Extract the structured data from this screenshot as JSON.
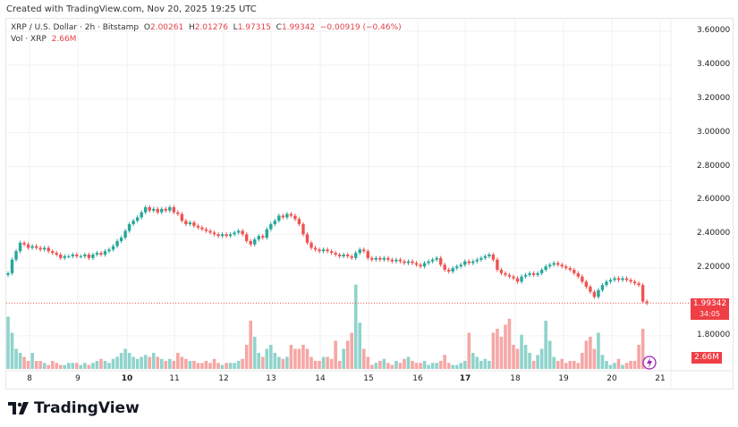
{
  "caption": "Created with TradingView.com, Nov 20, 2025 19:25 UTC",
  "legend": {
    "symbol": "XRP / U.S. Dollar · 2h · Bitstamp",
    "open_label": "O",
    "open": "2.00261",
    "high_label": "H",
    "high": "2.01276",
    "low_label": "L",
    "low": "1.97315",
    "close_label": "C",
    "close": "1.99342",
    "change": "−0.00919 (−0.46%)",
    "vol_label": "Vol · XRP",
    "vol": "2.66M"
  },
  "price_label": {
    "value": "1.99342",
    "countdown": "34:05"
  },
  "volume_label": "2.66M",
  "brand": "TradingView",
  "colors": {
    "up": "#26a69a",
    "down": "#ef5350",
    "up_vol": "#8fd3cc",
    "down_vol": "#f5a7a5",
    "label": "#ef3e45",
    "grid": "#f2f2f2"
  },
  "chart_data": {
    "type": "candlestick",
    "interval": "2h",
    "y_ticks": [
      "3.60000",
      "3.40000",
      "3.20000",
      "3.00000",
      "2.80000",
      "2.60000",
      "2.40000",
      "2.20000",
      "1.80000"
    ],
    "ylim": [
      1.8,
      3.6
    ],
    "x_ticks": [
      "8",
      "9",
      "10",
      "11",
      "12",
      "13",
      "14",
      "15",
      "16",
      "17",
      "18",
      "19",
      "20",
      "21"
    ],
    "bold_x_ticks": [
      "10",
      "17"
    ],
    "grid": true,
    "closes": [
      2.17,
      2.25,
      2.3,
      2.35,
      2.34,
      2.32,
      2.33,
      2.32,
      2.31,
      2.32,
      2.3,
      2.29,
      2.28,
      2.26,
      2.27,
      2.27,
      2.28,
      2.27,
      2.27,
      2.28,
      2.26,
      2.28,
      2.29,
      2.28,
      2.3,
      2.31,
      2.33,
      2.36,
      2.38,
      2.42,
      2.46,
      2.48,
      2.5,
      2.53,
      2.56,
      2.54,
      2.55,
      2.53,
      2.55,
      2.54,
      2.56,
      2.53,
      2.52,
      2.48,
      2.46,
      2.47,
      2.45,
      2.44,
      2.43,
      2.42,
      2.41,
      2.4,
      2.39,
      2.4,
      2.39,
      2.4,
      2.41,
      2.42,
      2.4,
      2.36,
      2.34,
      2.37,
      2.39,
      2.38,
      2.43,
      2.46,
      2.48,
      2.51,
      2.5,
      2.52,
      2.51,
      2.49,
      2.46,
      2.4,
      2.35,
      2.32,
      2.31,
      2.3,
      2.31,
      2.3,
      2.29,
      2.28,
      2.27,
      2.28,
      2.27,
      2.26,
      2.29,
      2.31,
      2.3,
      2.26,
      2.25,
      2.26,
      2.25,
      2.26,
      2.25,
      2.24,
      2.25,
      2.24,
      2.23,
      2.24,
      2.23,
      2.22,
      2.21,
      2.23,
      2.24,
      2.25,
      2.26,
      2.22,
      2.19,
      2.18,
      2.2,
      2.21,
      2.22,
      2.24,
      2.23,
      2.24,
      2.25,
      2.26,
      2.27,
      2.28,
      2.25,
      2.19,
      2.17,
      2.16,
      2.15,
      2.14,
      2.12,
      2.15,
      2.16,
      2.17,
      2.16,
      2.17,
      2.19,
      2.21,
      2.22,
      2.23,
      2.22,
      2.21,
      2.2,
      2.19,
      2.17,
      2.15,
      2.12,
      2.09,
      2.06,
      2.03,
      2.07,
      2.1,
      2.12,
      2.13,
      2.14,
      2.13,
      2.14,
      2.13,
      2.12,
      2.11,
      2.1,
      2.00261,
      1.99342
    ],
    "volumes_millions": [
      13,
      9,
      5,
      4,
      3,
      2,
      4,
      2,
      2,
      1.5,
      1,
      2,
      1.5,
      1,
      1,
      1.5,
      1.5,
      1.5,
      1,
      1.5,
      1,
      1.5,
      2,
      2.5,
      2,
      1.5,
      2.5,
      3,
      4,
      5,
      4,
      3,
      2.5,
      3,
      3.5,
      3,
      4,
      3,
      2.5,
      2,
      2.5,
      2,
      4,
      3,
      2.5,
      2,
      2,
      1.5,
      1.5,
      2,
      1.5,
      2.5,
      1.5,
      1,
      1.5,
      1.5,
      1.5,
      2,
      2.5,
      6,
      12,
      8,
      4,
      3,
      5,
      6,
      4,
      3,
      2.5,
      3,
      6,
      5,
      5,
      6,
      5,
      3,
      2,
      2,
      3,
      3,
      2.5,
      7,
      2,
      5,
      7,
      9,
      21,
      11.5,
      5,
      3,
      1,
      1.5,
      2,
      2.5,
      1.5,
      1,
      2,
      1.5,
      2.5,
      3,
      2,
      1.5,
      1.5,
      2,
      1,
      1.5,
      1.5,
      2,
      3.5,
      1.5,
      1,
      1,
      1.5,
      2,
      9,
      4,
      3,
      2,
      2.5,
      2,
      9,
      10,
      8,
      11,
      12.5,
      6,
      5,
      8.5,
      6,
      4,
      2,
      3.5,
      5,
      12,
      7,
      3,
      2,
      2.5,
      1.5,
      2,
      2,
      1.5,
      4,
      7,
      8,
      5,
      9,
      3.5,
      2,
      1,
      1.5,
      2.5,
      1,
      1.5,
      2,
      2,
      6,
      10,
      2.66
    ]
  }
}
